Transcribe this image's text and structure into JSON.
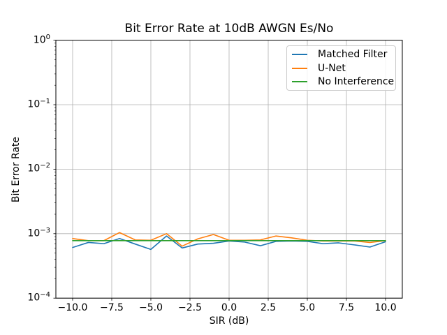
{
  "figure": {
    "background": "#ffffff",
    "spine_color": "#000000",
    "grid_color": "#b0b0b0"
  },
  "chart_data": {
    "type": "line",
    "title": "Bit Error Rate at 10dB AWGN Es/No",
    "xlabel": "SIR (dB)",
    "ylabel": "Bit Error Rate",
    "grid": true,
    "legend_position": "upper right",
    "x_scale": "linear",
    "y_scale": "log",
    "xlim": [
      -11.07,
      11.07
    ],
    "ylim_exponents": [
      0,
      -4
    ],
    "xticks": [
      -10.0,
      -7.5,
      -5.0,
      -2.5,
      0.0,
      2.5,
      5.0,
      7.5,
      10.0
    ],
    "xticklabels": [
      "−10.0",
      "−7.5",
      "−5.0",
      "−2.5",
      "0.0",
      "2.5",
      "5.0",
      "7.5",
      "10.0"
    ],
    "ytick_exponents": [
      0,
      -1,
      -2,
      -3,
      -4
    ],
    "ytick_exponent_labels": [
      "0",
      "−1",
      "−2",
      "−3",
      "−4"
    ],
    "x": [
      -10,
      -9,
      -8,
      -7,
      -6,
      -5,
      -4,
      -3,
      -2,
      -1,
      0,
      1,
      2,
      3,
      4,
      5,
      6,
      7,
      8,
      9,
      10
    ],
    "series": [
      {
        "name": "Matched Filter",
        "color": "#1f77b4",
        "values": [
          0.00061,
          0.00073,
          0.0007,
          0.00084,
          0.00069,
          0.00057,
          0.00092,
          0.0006,
          0.00069,
          0.00071,
          0.00077,
          0.00074,
          0.00065,
          0.00076,
          0.00077,
          0.00076,
          0.0007,
          0.00072,
          0.00067,
          0.00062,
          0.00075
        ]
      },
      {
        "name": "U-Net",
        "color": "#ff7f0e",
        "values": [
          0.00084,
          0.00078,
          0.00078,
          0.00104,
          0.0008,
          0.00079,
          0.001,
          0.00064,
          0.00083,
          0.00097,
          0.00079,
          0.00079,
          0.0008,
          0.00092,
          0.00086,
          0.00079,
          0.00077,
          0.00077,
          0.00077,
          0.00073,
          0.00078
        ]
      },
      {
        "name": "No Interference",
        "color": "#2ca02c",
        "values": [
          0.00078,
          0.00078,
          0.00078,
          0.00078,
          0.00078,
          0.00078,
          0.00078,
          0.00078,
          0.00078,
          0.00078,
          0.00078,
          0.00078,
          0.00078,
          0.00078,
          0.00078,
          0.00078,
          0.00078,
          0.00078,
          0.00078,
          0.00078,
          0.00078
        ]
      }
    ]
  }
}
